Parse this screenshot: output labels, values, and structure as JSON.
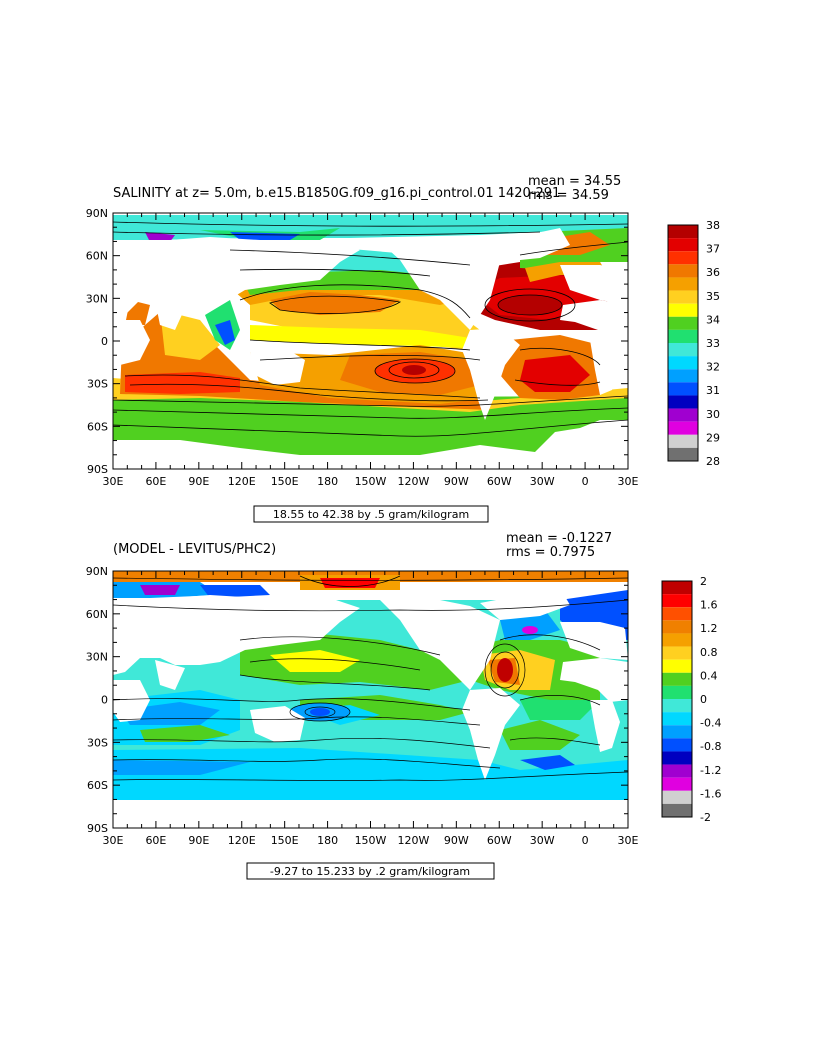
{
  "chart_data": [
    {
      "type": "heatmap",
      "title": "SALINITY at z=    5.0m, b.e15.B1850G.f09_g16.pi_control.01 1420-291",
      "stats": {
        "mean": "mean = 34.55",
        "rms": "rms = 34.59"
      },
      "range_label": "18.55 to 42.38 by .5 gram/kilogram",
      "x_ticks": [
        "30E",
        "60E",
        "90E",
        "120E",
        "150E",
        "180",
        "150W",
        "120W",
        "90W",
        "60W",
        "30W",
        "0",
        "30E"
      ],
      "y_ticks": [
        "90N",
        "60N",
        "30N",
        "0",
        "30S",
        "60S",
        "90S"
      ],
      "colorbar": {
        "labels": [
          "38",
          "37",
          "36",
          "35",
          "34",
          "33",
          "32",
          "31",
          "30",
          "29",
          "28"
        ],
        "colors": [
          "#b40000",
          "#e30000",
          "#ff3000",
          "#f07800",
          "#f5a000",
          "#ffd020",
          "#ffff00",
          "#50d020",
          "#20e070",
          "#40e8d8",
          "#00d8ff",
          "#00a0ff",
          "#0050ff",
          "#0000c0",
          "#a000d0",
          "#e000e0",
          "#d0d0d0",
          "#707070"
        ]
      }
    },
    {
      "type": "heatmap",
      "title": "(MODEL - LEVITUS/PHC2)",
      "stats": {
        "mean": "mean = -0.1227",
        "rms": "rms = 0.7975"
      },
      "range_label": "-9.27 to 15.233 by .2 gram/kilogram",
      "x_ticks": [
        "30E",
        "60E",
        "90E",
        "120E",
        "150E",
        "180",
        "150W",
        "120W",
        "90W",
        "60W",
        "30W",
        "0",
        "30E"
      ],
      "y_ticks": [
        "90N",
        "60N",
        "30N",
        "0",
        "30S",
        "60S",
        "90S"
      ],
      "colorbar": {
        "labels": [
          "2",
          "1.6",
          "1.2",
          "0.8",
          "0.4",
          "0",
          "-0.4",
          "-0.8",
          "-1.2",
          "-1.6",
          "-2"
        ],
        "colors": [
          "#c00000",
          "#ff0000",
          "#ff5000",
          "#f08000",
          "#f5a000",
          "#ffd020",
          "#ffff00",
          "#50d020",
          "#20e070",
          "#40e8d8",
          "#00d8ff",
          "#00a0ff",
          "#0050ff",
          "#0000c0",
          "#a000d0",
          "#e000e0",
          "#d0d0d0",
          "#707070"
        ]
      }
    }
  ]
}
